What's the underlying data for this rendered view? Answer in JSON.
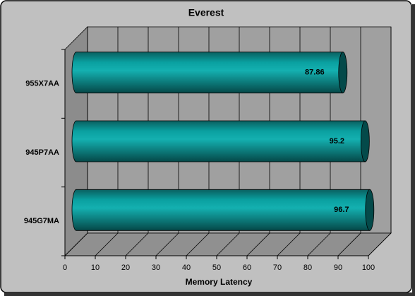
{
  "chart_data": {
    "type": "bar3d-horizontal",
    "title": "Everest",
    "x_label": "Memory Latency",
    "categories": [
      "955X7AA",
      "945P7AA",
      "945G7MA"
    ],
    "values": [
      87.86,
      95.2,
      96.7
    ],
    "color": "#008b8b",
    "xlim": [
      0,
      100
    ],
    "xticks": [
      0,
      10,
      20,
      30,
      40,
      50,
      60,
      70,
      80,
      90,
      100
    ],
    "grid": true
  }
}
